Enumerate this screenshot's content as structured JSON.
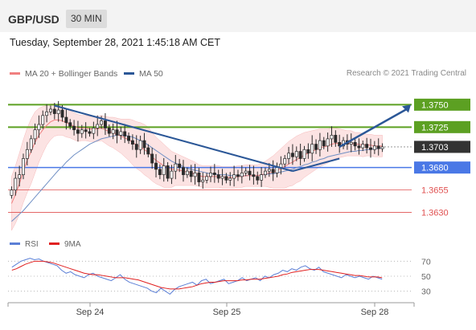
{
  "header": {
    "symbol": "GBP/USD",
    "timeframe": "30 MIN"
  },
  "timestamp": "Tuesday, September 28, 2021 1:45:18 AM CET",
  "legend": {
    "ma20": "MA 20 + Bollinger Bands",
    "ma50": "MA 50",
    "ma20_color": "#f08080",
    "ma50_color": "#2b5797"
  },
  "credit": "Research © 2021 Trading Central",
  "rsi_legend": {
    "rsi": "RSI",
    "ma9": "9MA",
    "rsi_color": "#5b7fd6",
    "ma9_color": "#e02020"
  },
  "colors": {
    "up_fill": "#ffffff",
    "down_fill": "#2b2b2b",
    "green": "#5ca022",
    "blue": "#4a78e6",
    "red": "#e05050",
    "trend": "#2b5797",
    "band": "#fbdada"
  },
  "chart_data": [
    {
      "type": "candlestick",
      "ylim": [
        1.3618,
        1.377
      ],
      "x_ticks": [
        "Sep 24",
        "Sep 25",
        "Sep 28"
      ],
      "levels": [
        {
          "label": "1.3750",
          "value": 1.375,
          "style": "green-box"
        },
        {
          "label": "1.3725",
          "value": 1.3725,
          "style": "green-box"
        },
        {
          "label": "1.3703",
          "value": 1.3703,
          "style": "dark-box"
        },
        {
          "label": "1.3680",
          "value": 1.368,
          "style": "blue-box"
        },
        {
          "label": "1.3655",
          "value": 1.3655,
          "style": "red-text"
        },
        {
          "label": "1.3630",
          "value": 1.363,
          "style": "red-text"
        }
      ],
      "close": [
        1.3655,
        1.3668,
        1.3672,
        1.369,
        1.37,
        1.3712,
        1.3722,
        1.3728,
        1.3738,
        1.3742,
        1.3745,
        1.374,
        1.3744,
        1.3736,
        1.373,
        1.3726,
        1.3722,
        1.3718,
        1.3722,
        1.372,
        1.3718,
        1.3724,
        1.3728,
        1.3732,
        1.3724,
        1.3718,
        1.3722,
        1.3716,
        1.372,
        1.3715,
        1.371,
        1.3706,
        1.37,
        1.371,
        1.3702,
        1.3695,
        1.3685,
        1.3678,
        1.3672,
        1.3682,
        1.3668,
        1.3676,
        1.3684,
        1.368,
        1.3672,
        1.3676,
        1.367,
        1.3674,
        1.3664,
        1.3666,
        1.367,
        1.3674,
        1.3672,
        1.3668,
        1.367,
        1.3666,
        1.3668,
        1.3672,
        1.367,
        1.3674,
        1.3676,
        1.3672,
        1.367,
        1.3666,
        1.3672,
        1.3676,
        1.3678,
        1.3674,
        1.368,
        1.3684,
        1.369,
        1.3696,
        1.3692,
        1.3698,
        1.369,
        1.37,
        1.3696,
        1.3706,
        1.37,
        1.371,
        1.3704,
        1.3712,
        1.3716,
        1.3708,
        1.3704,
        1.371,
        1.3706,
        1.3708,
        1.3704,
        1.3702,
        1.3706,
        1.3702,
        1.37,
        1.3704,
        1.3701,
        1.3703
      ],
      "ma20": [
        1.364,
        1.365,
        1.3662,
        1.3676,
        1.3688,
        1.3698,
        1.3708,
        1.3716,
        1.3722,
        1.3727,
        1.3731,
        1.3733,
        1.3733,
        1.3732,
        1.373,
        1.3728,
        1.3726,
        1.3724,
        1.3724,
        1.3724,
        1.3723,
        1.3723,
        1.3723,
        1.3724,
        1.3722,
        1.372,
        1.3719,
        1.3717,
        1.3715,
        1.3713,
        1.3711,
        1.3708,
        1.3705,
        1.3703,
        1.37,
        1.3697,
        1.3692,
        1.3688,
        1.3685,
        1.3682,
        1.368,
        1.3678,
        1.3678,
        1.3677,
        1.3676,
        1.3675,
        1.3674,
        1.3673,
        1.3671,
        1.367,
        1.367,
        1.367,
        1.367,
        1.367,
        1.3669,
        1.3669,
        1.3669,
        1.3669,
        1.367,
        1.367,
        1.3671,
        1.3671,
        1.3671,
        1.3671,
        1.3672,
        1.3673,
        1.3674,
        1.3675,
        1.3677,
        1.3679,
        1.3681,
        1.3684,
        1.3686,
        1.3689,
        1.3691,
        1.3694,
        1.3696,
        1.3698,
        1.37,
        1.3702,
        1.3703,
        1.3704,
        1.3706,
        1.3707,
        1.3707,
        1.3707,
        1.3707,
        1.3707,
        1.3706,
        1.3706,
        1.3705,
        1.3705,
        1.3705,
        1.3704,
        1.3704,
        1.3704
      ],
      "ma50": [
        1.362,
        1.3624,
        1.3628,
        1.3632,
        1.3637,
        1.3642,
        1.3647,
        1.3652,
        1.3657,
        1.3662,
        1.3667,
        1.3672,
        1.3677,
        1.3681,
        1.3686,
        1.369,
        1.3694,
        1.3697,
        1.37,
        1.3703,
        1.3706,
        1.3708,
        1.371,
        1.3712,
        1.3713,
        1.3714,
        1.3715,
        1.3716,
        1.3716,
        1.3716,
        1.3715,
        1.3714,
        1.3712,
        1.371,
        1.3708,
        1.3705,
        1.3702,
        1.3699,
        1.3696,
        1.3693,
        1.369,
        1.3687,
        1.3685,
        1.3683,
        1.3681,
        1.3679,
        1.3678,
        1.3677,
        1.3676,
        1.3675,
        1.3674,
        1.3673,
        1.3673,
        1.3672,
        1.3672,
        1.3672,
        1.3671,
        1.3671,
        1.3671,
        1.3671,
        1.3671,
        1.3671,
        1.3671,
        1.3671,
        1.3672,
        1.3672,
        1.3673,
        1.3673,
        1.3674,
        1.3675,
        1.3676,
        1.3677,
        1.3678,
        1.368,
        1.3681,
        1.3683,
        1.3684,
        1.3686,
        1.3687,
        1.3689,
        1.369,
        1.3692,
        1.3693,
        1.3694,
        1.3695,
        1.3696,
        1.3697,
        1.3698,
        1.3698,
        1.3699,
        1.3699,
        1.37,
        1.37,
        1.3701,
        1.3701,
        1.3702
      ],
      "band_width": [
        0.003,
        0.0032,
        0.0034,
        0.0035,
        0.0036,
        0.0036,
        0.0034,
        0.003,
        0.0026,
        0.0022,
        0.002,
        0.0018,
        0.0017,
        0.0016,
        0.0016,
        0.0015,
        0.0015,
        0.0015,
        0.0014,
        0.0014,
        0.0014,
        0.0014,
        0.0014,
        0.0014,
        0.0015,
        0.0016,
        0.0017,
        0.0018,
        0.0019,
        0.0021,
        0.0023,
        0.0025,
        0.0026,
        0.0027,
        0.0028,
        0.0028,
        0.0027,
        0.0026,
        0.0025,
        0.0024,
        0.0022,
        0.002,
        0.0018,
        0.0017,
        0.0016,
        0.0015,
        0.0014,
        0.0013,
        0.0012,
        0.0012,
        0.0012,
        0.0012,
        0.0012,
        0.0012,
        0.0012,
        0.0012,
        0.0012,
        0.0012,
        0.0012,
        0.0012,
        0.0012,
        0.0012,
        0.0012,
        0.0012,
        0.0013,
        0.0014,
        0.0016,
        0.0018,
        0.002,
        0.0022,
        0.0024,
        0.0025,
        0.0026,
        0.0026,
        0.0026,
        0.0025,
        0.0024,
        0.0023,
        0.0022,
        0.0021,
        0.002,
        0.0019,
        0.0018,
        0.0017,
        0.0016,
        0.0015,
        0.0014,
        0.0014,
        0.0013,
        0.0013,
        0.0013,
        0.0012,
        0.0012,
        0.0012,
        0.0012,
        0.0012
      ],
      "trendlines": [
        {
          "from": [
            11,
            1.3749
          ],
          "to": [
            72,
            1.3676
          ],
          "color": "#2b5797"
        },
        {
          "from": [
            72,
            1.3676
          ],
          "to": [
            84,
            1.369
          ],
          "color": "#2b5797"
        }
      ],
      "projection_arrow": {
        "from": [
          84,
          1.3703
        ],
        "to": [
          94,
          1.375
        ]
      }
    },
    {
      "type": "line",
      "name": "RSI",
      "ylim": [
        20,
        80
      ],
      "y_ticks": [
        70,
        50,
        30
      ],
      "rsi": [
        62,
        66,
        70,
        72,
        74,
        72,
        73,
        70,
        68,
        66,
        64,
        58,
        54,
        56,
        52,
        50,
        48,
        52,
        54,
        50,
        48,
        46,
        44,
        48,
        52,
        46,
        42,
        40,
        38,
        36,
        34,
        30,
        28,
        34,
        30,
        26,
        32,
        36,
        38,
        40,
        42,
        38,
        44,
        46,
        40,
        42,
        44,
        46,
        40,
        42,
        44,
        48,
        44,
        46,
        48,
        44,
        50,
        48,
        52,
        54,
        58,
        56,
        60,
        58,
        62,
        64,
        60,
        58,
        62,
        56,
        54,
        52,
        50,
        48,
        52,
        50,
        48,
        50,
        48,
        46,
        50,
        48,
        46
      ],
      "ma9": [
        58,
        60,
        63,
        66,
        68,
        70,
        70,
        70,
        69,
        68,
        66,
        64,
        62,
        60,
        58,
        56,
        54,
        53,
        52,
        52,
        51,
        50,
        49,
        48,
        48,
        48,
        47,
        46,
        45,
        43,
        41,
        39,
        37,
        35,
        34,
        33,
        33,
        33,
        34,
        35,
        36,
        38,
        40,
        41,
        42,
        42,
        43,
        44,
        44,
        44,
        44,
        45,
        45,
        46,
        46,
        46,
        47,
        48,
        49,
        50,
        52,
        53,
        55,
        56,
        57,
        58,
        59,
        59,
        59,
        58,
        57,
        56,
        55,
        54,
        53,
        52,
        51,
        51,
        50,
        49,
        49,
        49,
        48
      ]
    }
  ]
}
